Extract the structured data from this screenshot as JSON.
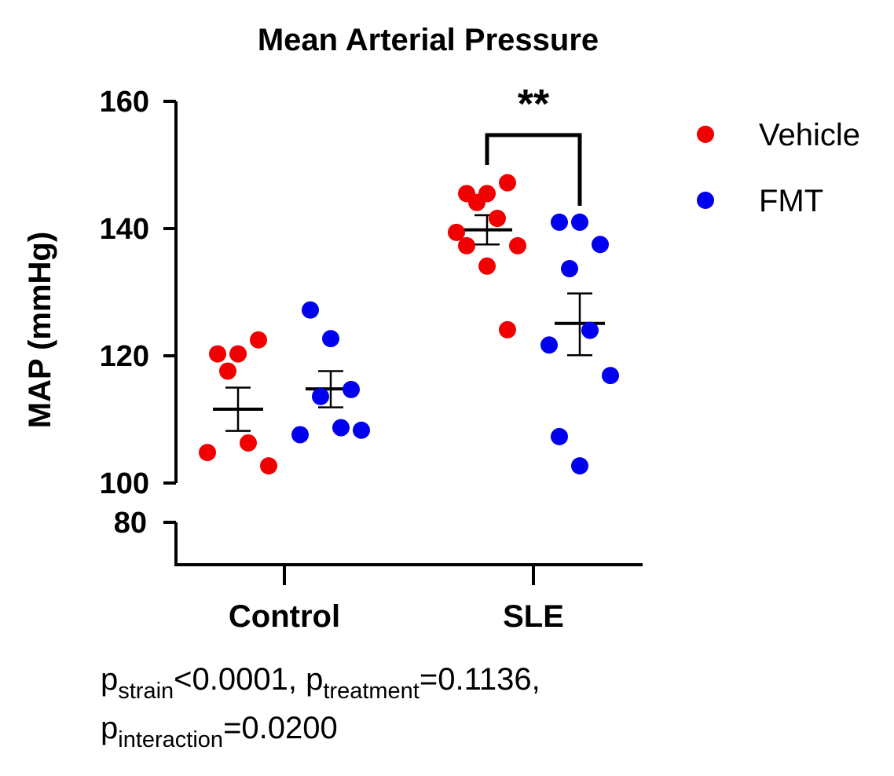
{
  "chart_data": {
    "type": "scatter",
    "title": "Mean Arterial Pressure",
    "ylabel": "MAP (mmHg)",
    "xlabel": "",
    "categories": [
      "Control",
      "SLE"
    ],
    "yticks_upper": [
      "100",
      "120",
      "140",
      "160"
    ],
    "ytick_lower": "80",
    "ylim_upper": [
      100,
      160
    ],
    "y_axis_break": true,
    "legend_position": "top-right",
    "colors": {
      "Vehicle": "#f00000",
      "FMT": "#0000ee"
    },
    "series": [
      {
        "name": "Vehicle",
        "groups": [
          {
            "category": "Control",
            "mean": 111.6,
            "sem_upper": 115.0,
            "sem_lower": 108.2,
            "values": [
              120.3,
              120.3,
              122.5,
              117.6,
              106.3,
              104.8,
              102.7
            ]
          },
          {
            "category": "SLE",
            "mean": 139.8,
            "sem_upper": 142.1,
            "sem_lower": 137.5,
            "values": [
              145.5,
              145.5,
              147.2,
              144.1,
              141.6,
              139.4,
              137.3,
              137.3,
              134.1,
              124.1
            ]
          }
        ]
      },
      {
        "name": "FMT",
        "groups": [
          {
            "category": "Control",
            "mean": 114.8,
            "sem_upper": 117.6,
            "sem_lower": 111.9,
            "values": [
              127.2,
              122.7,
              114.7,
              113.6,
              108.7,
              107.6,
              108.3
            ]
          },
          {
            "category": "SLE",
            "mean": 125.1,
            "sem_upper": 129.8,
            "sem_lower": 120.1,
            "values": [
              141.0,
              141.0,
              137.5,
              133.7,
              124.0,
              121.7,
              116.9,
              107.3,
              102.7
            ]
          }
        ]
      }
    ],
    "annotations": {
      "significance": "**",
      "stats_line1": [
        {
          "text": "p",
          "sub": false
        },
        {
          "text": "strain",
          "sub": true
        },
        {
          "text": "<0.0001, p",
          "sub": false
        },
        {
          "text": "treatment",
          "sub": true
        },
        {
          "text": "=0.1136,",
          "sub": false
        }
      ],
      "stats_line2": [
        {
          "text": "p",
          "sub": false
        },
        {
          "text": "interaction",
          "sub": true
        },
        {
          "text": "=0.0200",
          "sub": false
        }
      ]
    }
  }
}
